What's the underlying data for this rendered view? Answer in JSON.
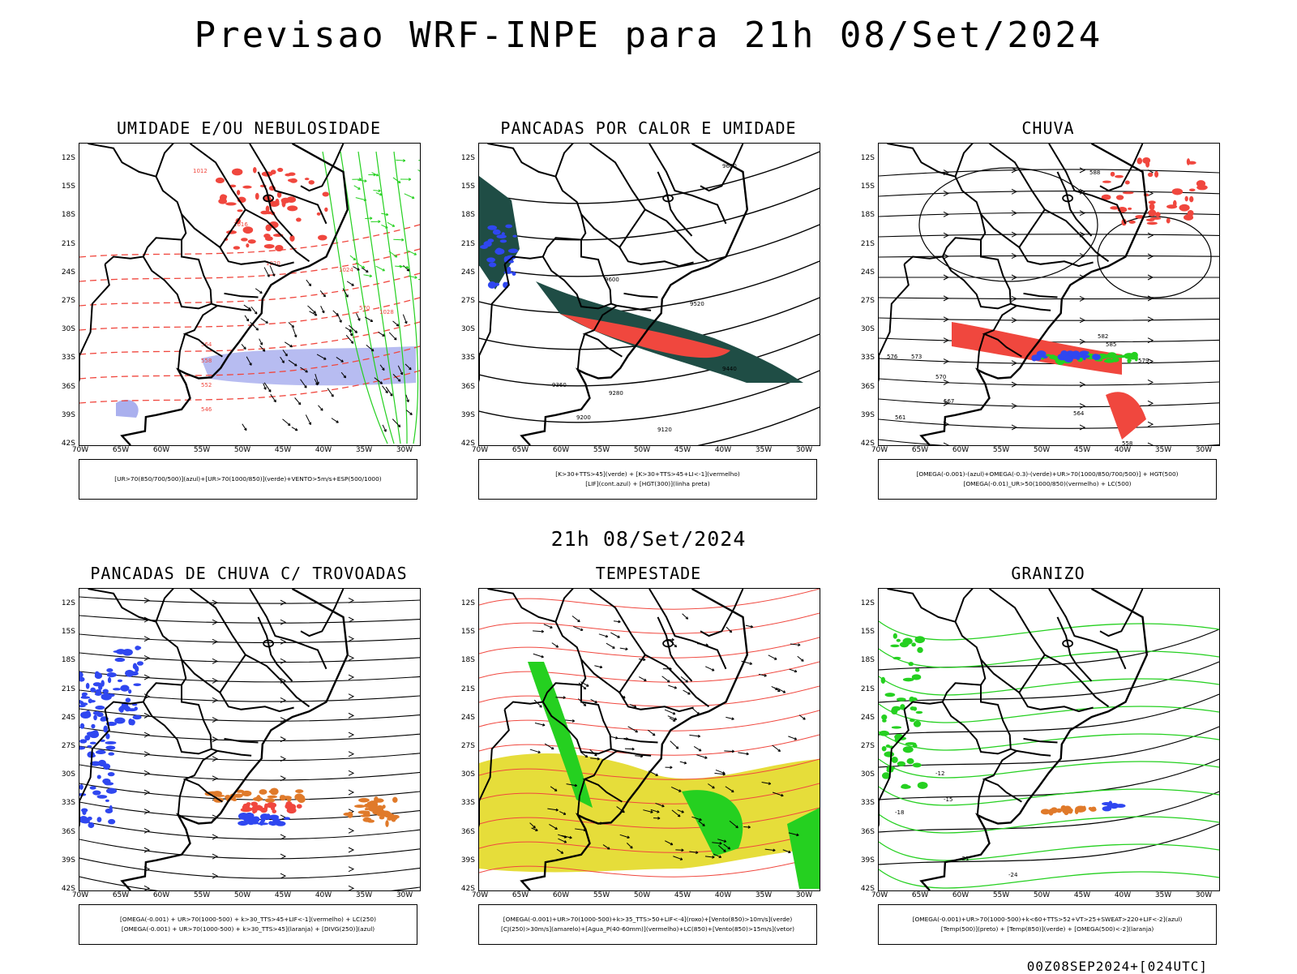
{
  "title": "Previsao WRF-INPE  para 21h 08/Set/2024",
  "subtitle": "21h 08/Set/2024",
  "footer": "00Z08SEP2024+[024UTC]",
  "lat_ticks": [
    "12S",
    "15S",
    "18S",
    "21S",
    "24S",
    "27S",
    "30S",
    "33S",
    "36S",
    "39S",
    "42S"
  ],
  "lon_ticks": [
    "70W",
    "65W",
    "60W",
    "55W",
    "50W",
    "45W",
    "40W",
    "35W",
    "30W"
  ],
  "panels": [
    {
      "title": "UMIDADE E/OU NEBULOSIDADE",
      "legend": [
        "[UR>70(850/700/500)](azul)+[UR>70(1000/850)](verde)+VENTO>5m/s+ESP(500/1000)"
      ]
    },
    {
      "title": "PANCADAS POR CALOR E UMIDADE",
      "legend": [
        "[K>30+TTS>45](verde) + [K>30+TTS>45+LI<-1](vermelho)",
        "[LIF](cont.azul) + [HGT(300)](linha preta)"
      ]
    },
    {
      "title": "CHUVA",
      "legend": [
        "[OMEGA(-0.001)-(azul)+OMEGA(-0.3)-(verde)+UR>70(1000/850/700/500)] + HGT(500)",
        "[OMEGA(-0.01)_UR>50(1000/850)(vermelho) + LC(500)"
      ]
    },
    {
      "title": "PANCADAS DE CHUVA C/ TROVOADAS",
      "legend": [
        "[OMEGA(-0.001) + UR>70(1000-500) + k>30_TTS>45+LIF<-1](vermelho) + LC(250)",
        "[OMEGA(-0.001) + UR>70(1000-500) + k>30_TTS>45](laranja) + [DIVG(250)](azul)"
      ]
    },
    {
      "title": "TEMPESTADE",
      "legend": [
        "[OMEGA(-0.001)+UR>70(1000-500)+k>35_TTS>50+LIF<-4](roxo)+[Vento(850)>10m/s](verde)",
        "[CJ(250)>30m/s](amarelo)+[Agua_P(40-60mm)](vermelho)+LC(850)+[Vento(850)>15m/s](vetor)"
      ]
    },
    {
      "title": "GRANIZO",
      "legend": [
        "[OMEGA(-0.001)+UR>70(1000-500)+k<60+TTS>52+VT>25+SWEAT>220+LIF<-2](azul)",
        "[Temp(500)](preto) + [Temp(850)](verde) + [OMEGA(500)<-2](laranja)"
      ]
    }
  ],
  "contour_labels": {
    "p1": [
      "1012",
      "1016",
      "1020",
      "1024",
      "1028",
      "570",
      "564",
      "558",
      "552",
      "546"
    ],
    "p2": [
      "9680",
      "9600",
      "9520",
      "9440",
      "9360",
      "9280",
      "9200",
      "9120"
    ],
    "p3": [
      "588",
      "585",
      "582",
      "579",
      "576",
      "573",
      "570",
      "567",
      "564",
      "561",
      "558"
    ],
    "p6": [
      "-12",
      "-15",
      "-18",
      "-21",
      "-24"
    ]
  },
  "colors": {
    "red": "#f0473e",
    "green": "#25d020",
    "blue": "#2f47f0",
    "darkgreen": "#1f4d45",
    "yellow": "#e6dd3a",
    "orange": "#e07a2a",
    "lavender": "#aab0ee"
  }
}
